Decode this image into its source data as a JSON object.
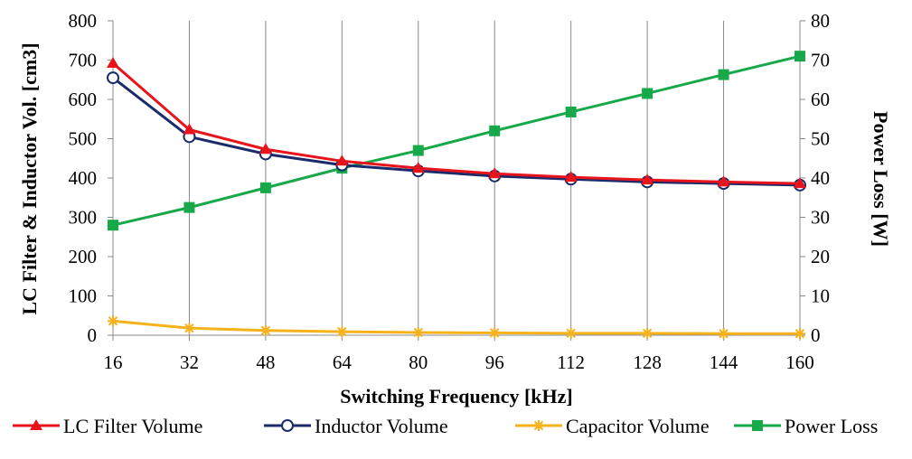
{
  "chart_data": {
    "type": "line",
    "x": [
      16,
      32,
      48,
      64,
      80,
      96,
      112,
      128,
      144,
      160
    ],
    "x_tick_labels": [
      "16",
      "32",
      "48",
      "64",
      "80",
      "96",
      "112",
      "128",
      "144",
      "160"
    ],
    "xlabel": "Switching Frequency [kHz]",
    "ylabel_left": "LC Filter & Inductor Vol. [cm3]",
    "ylabel_right": "Power Loss [W]",
    "ylim_left": [
      0,
      800
    ],
    "ylim_right": [
      0,
      80
    ],
    "y_ticks_left": [
      "0",
      "100",
      "200",
      "300",
      "400",
      "500",
      "600",
      "700",
      "800"
    ],
    "y_ticks_right": [
      "0",
      "10",
      "20",
      "30",
      "40",
      "50",
      "60",
      "70",
      "80"
    ],
    "grid": "vertical",
    "legend_position": "bottom",
    "series": [
      {
        "name": "LC Filter Volume",
        "axis": "left",
        "color": "#e8141c",
        "marker": "triangle",
        "values": [
          692,
          523,
          473,
          443,
          425,
          411,
          402,
          395,
          390,
          386
        ]
      },
      {
        "name": "Inductor Volume",
        "axis": "left",
        "color": "#1b2a6b",
        "marker": "circle-open",
        "values": [
          655,
          505,
          461,
          433,
          418,
          405,
          397,
          390,
          386,
          382
        ]
      },
      {
        "name": "Capacitor Volume",
        "axis": "left",
        "color": "#f5b21b",
        "marker": "star",
        "values": [
          36,
          18,
          12,
          9,
          7,
          6,
          5,
          5,
          4,
          4
        ]
      },
      {
        "name": "Power Loss",
        "axis": "right",
        "color": "#17a84a",
        "marker": "square",
        "values": [
          28,
          32.5,
          37.5,
          42.5,
          47,
          52,
          56.8,
          61.5,
          66.3,
          71
        ]
      }
    ]
  }
}
